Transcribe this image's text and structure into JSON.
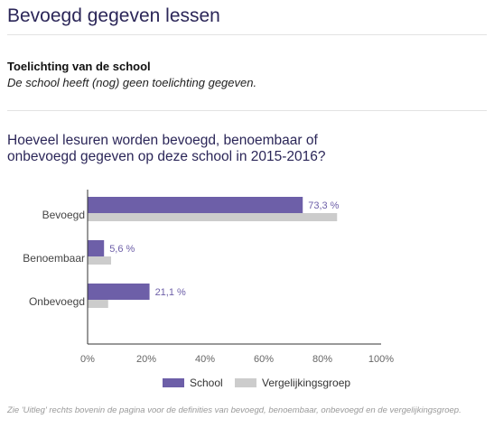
{
  "header": {
    "title": "Bevoegd gegeven lessen"
  },
  "explanation": {
    "heading": "Toelichting van de school",
    "text": "De school heeft (nog) geen toelichting gegeven."
  },
  "question": "Hoeveel lesuren worden bevoegd, benoembaar of onbevoegd gegeven op deze school in 2015-2016?",
  "footnote": "Zie 'Uitleg' rechts bovenin de pagina voor de definities van bevoegd, benoembaar, onbevoegd en de vergelijkingsgroep.",
  "chart_data": {
    "type": "bar",
    "orientation": "horizontal",
    "categories": [
      "Bevoegd",
      "Benoembaar",
      "Onbevoegd"
    ],
    "series": [
      {
        "name": "School",
        "values": [
          73.3,
          5.6,
          21.1
        ],
        "labels": [
          "73,3 %",
          "5,6 %",
          "21,1 %"
        ],
        "color": "#6d5fa8"
      },
      {
        "name": "Vergelijkingsgroep",
        "values": [
          85,
          8,
          7
        ],
        "color": "#cccccc"
      }
    ],
    "xlim": [
      0,
      100
    ],
    "xticks": [
      "0%",
      "20%",
      "40%",
      "60%",
      "80%",
      "100%"
    ],
    "legend_position": "bottom",
    "grid": false
  }
}
